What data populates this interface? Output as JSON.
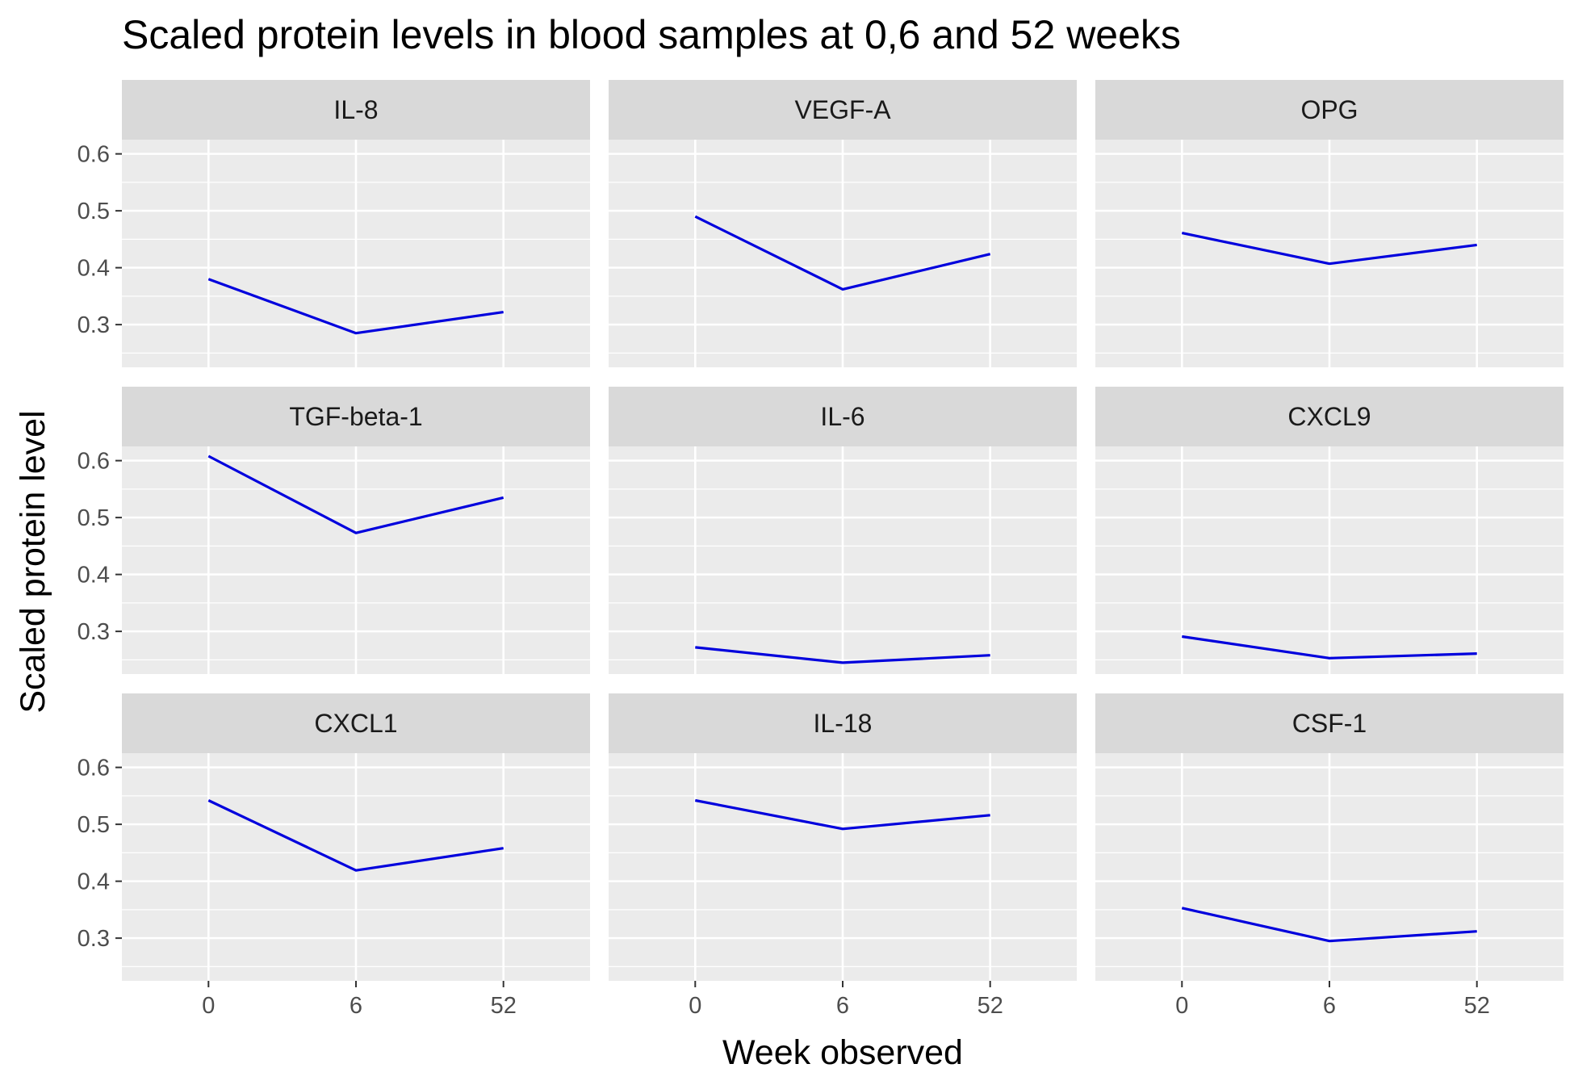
{
  "chart_data": {
    "type": "line",
    "title": "Scaled protein levels in blood samples at 0,6 and 52 weeks",
    "xlabel": "Week observed",
    "ylabel": "Scaled protein level",
    "x": [
      "0",
      "6",
      "52"
    ],
    "y_ticks": [
      "0.3",
      "0.4",
      "0.5",
      "0.6"
    ],
    "ylim": [
      0.225,
      0.625
    ],
    "grid": true,
    "line_color": "#0000dd",
    "panel_background": "#ebebeb",
    "strip_background": "#d9d9d9",
    "facets": [
      {
        "label": "IL-8",
        "values": [
          0.38,
          0.285,
          0.322
        ]
      },
      {
        "label": "VEGF-A",
        "values": [
          0.49,
          0.362,
          0.424
        ]
      },
      {
        "label": "OPG",
        "values": [
          0.461,
          0.407,
          0.44
        ]
      },
      {
        "label": "TGF-beta-1",
        "values": [
          0.608,
          0.473,
          0.535
        ]
      },
      {
        "label": "IL-6",
        "values": [
          0.272,
          0.245,
          0.258
        ]
      },
      {
        "label": "CXCL9",
        "values": [
          0.291,
          0.253,
          0.261
        ]
      },
      {
        "label": "CXCL1",
        "values": [
          0.542,
          0.419,
          0.458
        ]
      },
      {
        "label": "IL-18",
        "values": [
          0.542,
          0.492,
          0.516
        ]
      },
      {
        "label": "CSF-1",
        "values": [
          0.353,
          0.295,
          0.312
        ]
      }
    ]
  }
}
